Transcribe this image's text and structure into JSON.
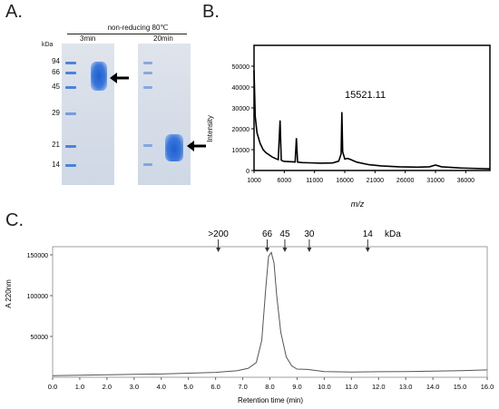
{
  "panelA": {
    "letter": "A.",
    "condition": "non-reducing 80℃",
    "kda_label": "kDa",
    "lane_left": "3min",
    "lane_right": "20min",
    "markers": [
      "94",
      "66",
      "45",
      "29",
      "21",
      "14"
    ]
  },
  "panelB": {
    "letter": "B.",
    "peak_label": "15521.11",
    "ylabel": "Intensity",
    "xlabel": "m/z"
  },
  "panelC": {
    "letter": "C.",
    "ylabel": "A 220nm",
    "xlabel": "Retention time (min)",
    "kda_unit": "kDa",
    "kda_markers": [
      {
        "label": ">200",
        "t": 6.1
      },
      {
        "label": "66",
        "t": 7.9
      },
      {
        "label": "45",
        "t": 8.55
      },
      {
        "label": "30",
        "t": 9.45
      },
      {
        "label": "14",
        "t": 11.6
      }
    ]
  },
  "chart_data": [
    {
      "type": "line",
      "title": "",
      "xlabel": "m/z",
      "ylabel": "Intensity",
      "xlim": [
        1000,
        40000
      ],
      "ylim": [
        0,
        60000
      ],
      "x_ticks": [
        1000,
        6000,
        11000,
        16000,
        21000,
        26000,
        31000,
        36000
      ],
      "y_ticks": [
        0,
        10000,
        20000,
        30000,
        40000,
        50000
      ],
      "series": [
        {
          "x": [
            1000,
            1200,
            1500,
            2000,
            2500,
            3000,
            3500,
            4000,
            4500,
            5000,
            5300,
            5500,
            5700,
            6000,
            7000,
            7800,
            8000,
            8200,
            9000,
            10000,
            12000,
            14000,
            15000,
            15400,
            15521,
            15650,
            16000,
            16500,
            17000,
            18000,
            20000,
            22000,
            25000,
            28000,
            30000,
            31000,
            32000,
            35000,
            40000
          ],
          "y": [
            48000,
            26000,
            18000,
            13000,
            10000,
            8500,
            7500,
            6500,
            5800,
            5200,
            24000,
            5000,
            4600,
            4400,
            4200,
            4100,
            15500,
            4000,
            3800,
            3700,
            3500,
            3600,
            4500,
            8000,
            28000,
            9000,
            5500,
            5800,
            5200,
            4000,
            2800,
            2200,
            1800,
            1600,
            1800,
            2600,
            1800,
            1200,
            800
          ]
        }
      ],
      "annotations": [
        {
          "x": 15521.11,
          "text": "15521.11"
        }
      ]
    },
    {
      "type": "line",
      "title": "",
      "xlabel": "Retention time (min)",
      "ylabel": "A 220nm",
      "xlim": [
        0,
        16
      ],
      "ylim": [
        0,
        160000
      ],
      "x_ticks": [
        0.0,
        1.0,
        2.0,
        3.0,
        4.0,
        5.0,
        6.0,
        7.0,
        8.0,
        9.0,
        10.0,
        11.0,
        12.0,
        13.0,
        14.0,
        15.0,
        16.0
      ],
      "y_ticks": [
        50000,
        100000,
        150000
      ],
      "series": [
        {
          "x": [
            0.0,
            1.0,
            2.0,
            3.0,
            4.0,
            5.0,
            6.0,
            6.8,
            7.2,
            7.5,
            7.7,
            7.85,
            7.95,
            8.05,
            8.15,
            8.25,
            8.4,
            8.6,
            8.8,
            9.0,
            9.4,
            10.0,
            11.0,
            12.0,
            13.0,
            14.0,
            15.0,
            16.0
          ],
          "y": [
            2000,
            2500,
            3000,
            3500,
            4000,
            5000,
            6000,
            8000,
            11000,
            18000,
            45000,
            110000,
            148000,
            153000,
            140000,
            100000,
            55000,
            25000,
            14000,
            10000,
            9500,
            7000,
            6500,
            6800,
            7000,
            7500,
            8000,
            9000
          ]
        }
      ]
    }
  ]
}
